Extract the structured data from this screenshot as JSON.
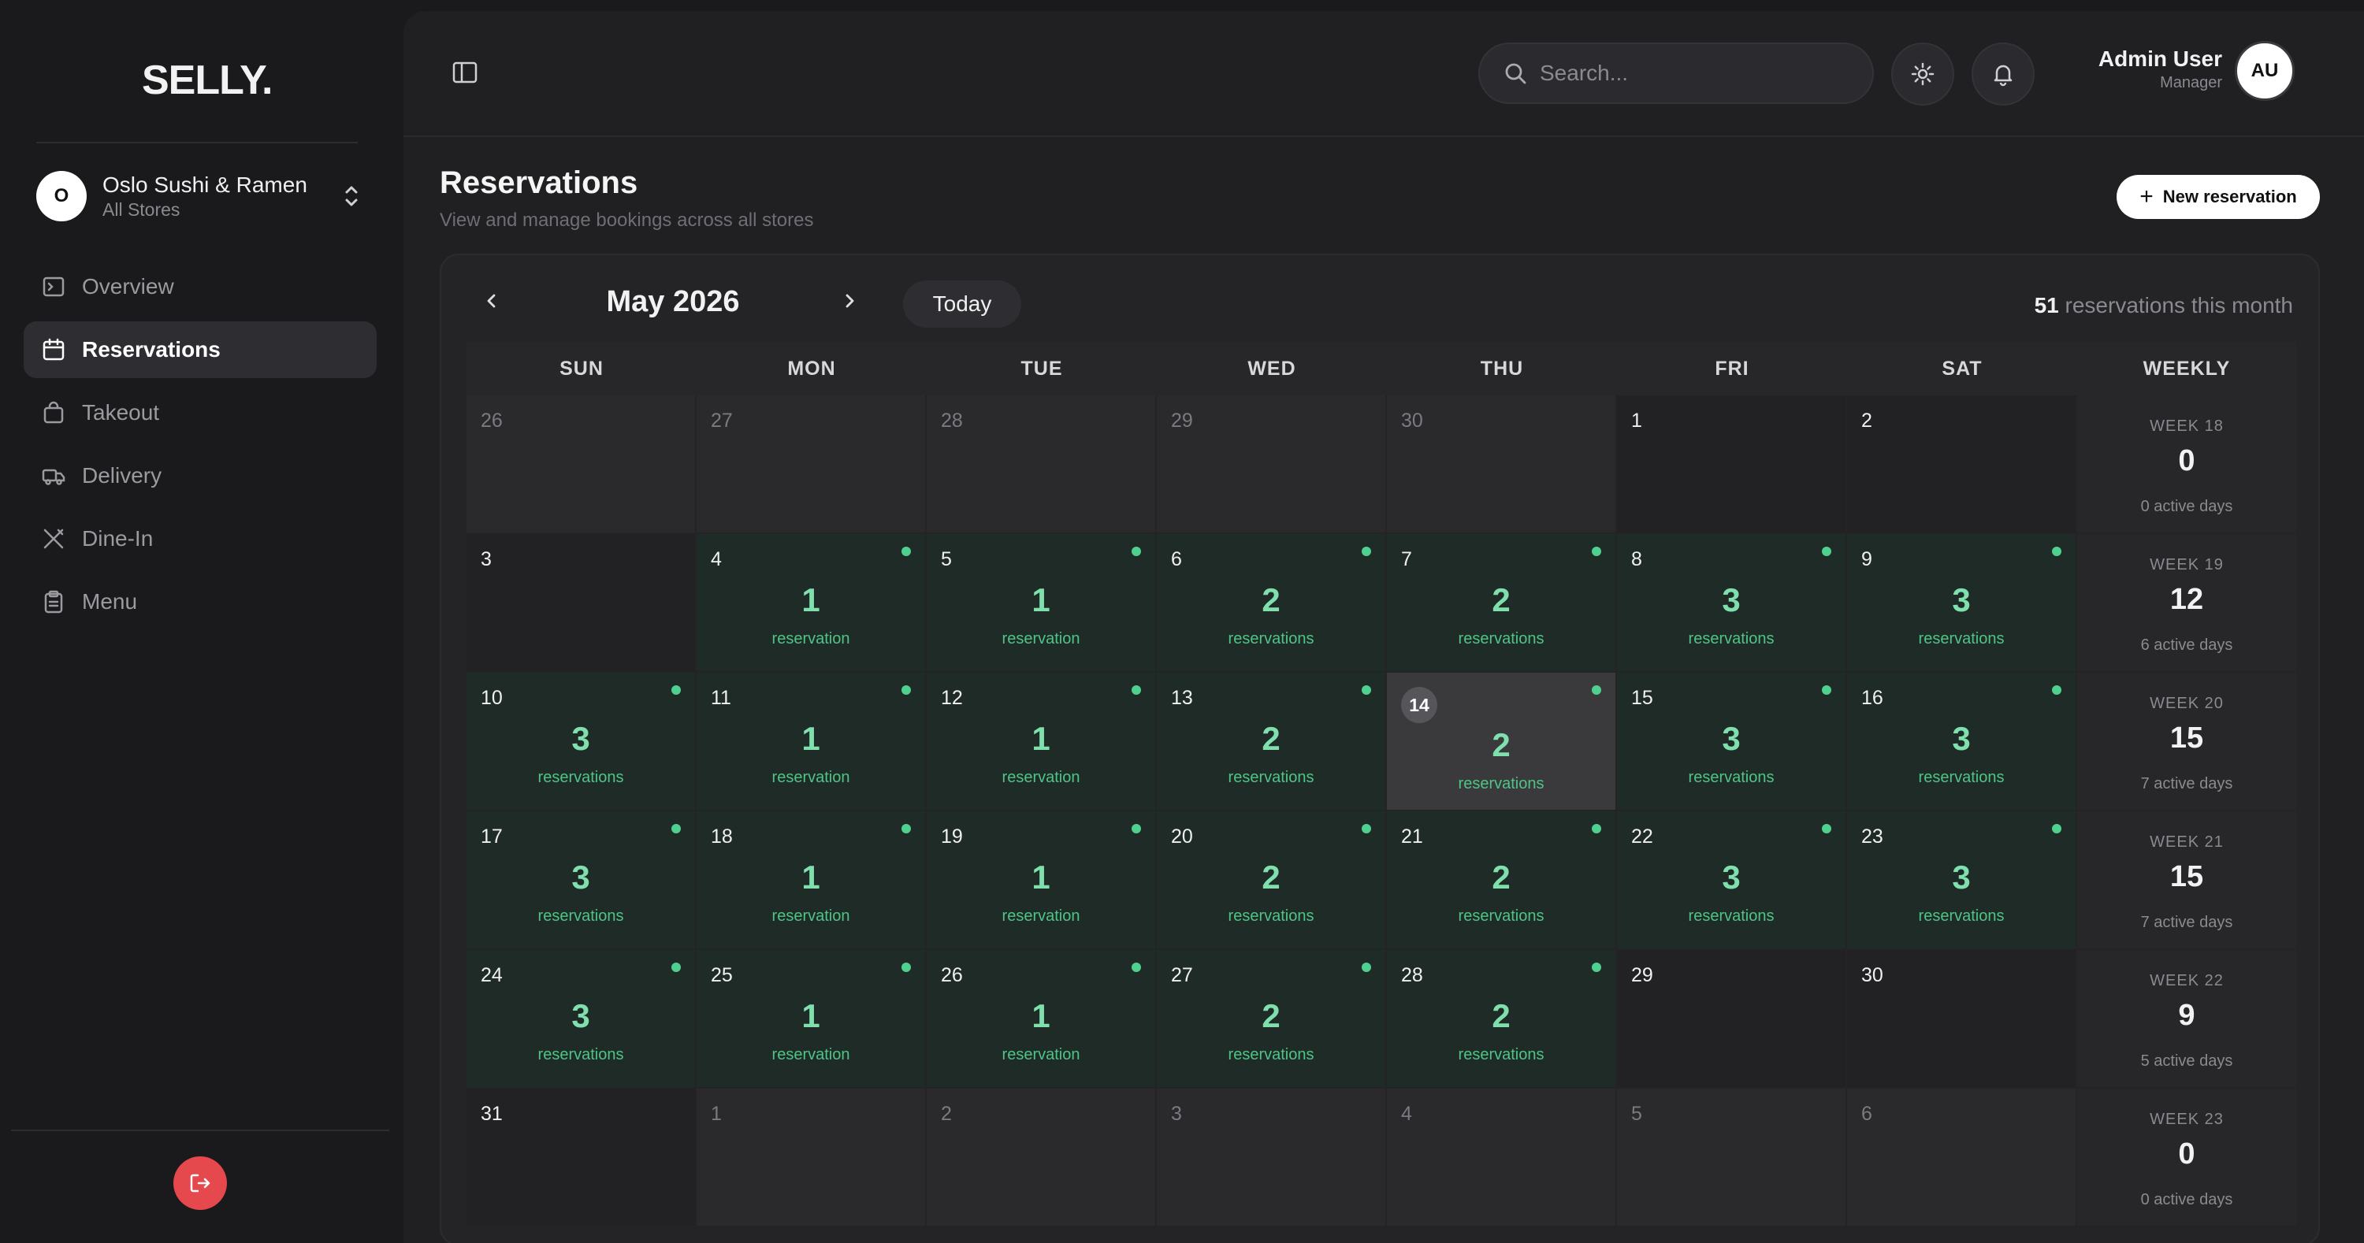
{
  "brand": {
    "logo": "SELLY."
  },
  "store": {
    "avatar": "O",
    "name": "Oslo Sushi & Ramen",
    "scope": "All Stores"
  },
  "sidebar": {
    "items": [
      {
        "label": "Overview",
        "icon": "overview-icon",
        "active": false
      },
      {
        "label": "Reservations",
        "icon": "calendar-icon",
        "active": true
      },
      {
        "label": "Takeout",
        "icon": "bag-icon",
        "active": false
      },
      {
        "label": "Delivery",
        "icon": "truck-icon",
        "active": false
      },
      {
        "label": "Dine-In",
        "icon": "utensils-icon",
        "active": false
      },
      {
        "label": "Menu",
        "icon": "clipboard-icon",
        "active": false
      }
    ]
  },
  "header": {
    "search_placeholder": "Search...",
    "user_name": "Admin User",
    "user_role": "Manager",
    "user_initials": "AU"
  },
  "page": {
    "title": "Reservations",
    "subtitle": "View and manage bookings across all stores",
    "new_button": "New reservation"
  },
  "calendar": {
    "month": "May 2026",
    "today_label": "Today",
    "month_total": "51",
    "month_total_suffix": "reservations this month",
    "headers": [
      "SUN",
      "MON",
      "TUE",
      "WED",
      "THU",
      "FRI",
      "SAT",
      "WEEKLY"
    ],
    "weeks": [
      {
        "days": [
          {
            "n": "26",
            "muted": true
          },
          {
            "n": "27",
            "muted": true
          },
          {
            "n": "28",
            "muted": true
          },
          {
            "n": "29",
            "muted": true
          },
          {
            "n": "30",
            "muted": true
          },
          {
            "n": "1",
            "empty": true
          },
          {
            "n": "2",
            "empty": true
          }
        ],
        "weekly": {
          "label": "WEEK 18",
          "count": "0",
          "days": "0 active days"
        }
      },
      {
        "days": [
          {
            "n": "3",
            "empty": true
          },
          {
            "n": "4",
            "count": "1",
            "label": "reservation"
          },
          {
            "n": "5",
            "count": "1",
            "label": "reservation"
          },
          {
            "n": "6",
            "count": "2",
            "label": "reservations"
          },
          {
            "n": "7",
            "count": "2",
            "label": "reservations"
          },
          {
            "n": "8",
            "count": "3",
            "label": "reservations"
          },
          {
            "n": "9",
            "count": "3",
            "label": "reservations"
          }
        ],
        "weekly": {
          "label": "WEEK 19",
          "count": "12",
          "days": "6 active days"
        }
      },
      {
        "days": [
          {
            "n": "10",
            "count": "3",
            "label": "reservations"
          },
          {
            "n": "11",
            "count": "1",
            "label": "reservation"
          },
          {
            "n": "12",
            "count": "1",
            "label": "reservation"
          },
          {
            "n": "13",
            "count": "2",
            "label": "reservations"
          },
          {
            "n": "14",
            "count": "2",
            "label": "reservations",
            "today": true
          },
          {
            "n": "15",
            "count": "3",
            "label": "reservations"
          },
          {
            "n": "16",
            "count": "3",
            "label": "reservations"
          }
        ],
        "weekly": {
          "label": "WEEK 20",
          "count": "15",
          "days": "7 active days"
        }
      },
      {
        "days": [
          {
            "n": "17",
            "count": "3",
            "label": "reservations"
          },
          {
            "n": "18",
            "count": "1",
            "label": "reservation"
          },
          {
            "n": "19",
            "count": "1",
            "label": "reservation"
          },
          {
            "n": "20",
            "count": "2",
            "label": "reservations"
          },
          {
            "n": "21",
            "count": "2",
            "label": "reservations"
          },
          {
            "n": "22",
            "count": "3",
            "label": "reservations"
          },
          {
            "n": "23",
            "count": "3",
            "label": "reservations"
          }
        ],
        "weekly": {
          "label": "WEEK 21",
          "count": "15",
          "days": "7 active days"
        }
      },
      {
        "days": [
          {
            "n": "24",
            "count": "3",
            "label": "reservations"
          },
          {
            "n": "25",
            "count": "1",
            "label": "reservation"
          },
          {
            "n": "26",
            "count": "1",
            "label": "reservation"
          },
          {
            "n": "27",
            "count": "2",
            "label": "reservations"
          },
          {
            "n": "28",
            "count": "2",
            "label": "reservations"
          },
          {
            "n": "29",
            "empty": true
          },
          {
            "n": "30",
            "empty": true
          }
        ],
        "weekly": {
          "label": "WEEK 22",
          "count": "9",
          "days": "5 active days"
        }
      },
      {
        "days": [
          {
            "n": "31",
            "empty": true
          },
          {
            "n": "1",
            "muted": true
          },
          {
            "n": "2",
            "muted": true
          },
          {
            "n": "3",
            "muted": true
          },
          {
            "n": "4",
            "muted": true
          },
          {
            "n": "5",
            "muted": true
          },
          {
            "n": "6",
            "muted": true
          }
        ],
        "weekly": {
          "label": "WEEK 23",
          "count": "0",
          "days": "0 active days"
        }
      }
    ]
  },
  "colors": {
    "accent_green": "#7fe0ae",
    "dot_green": "#4fd08e",
    "logout_red": "#e5484d"
  }
}
